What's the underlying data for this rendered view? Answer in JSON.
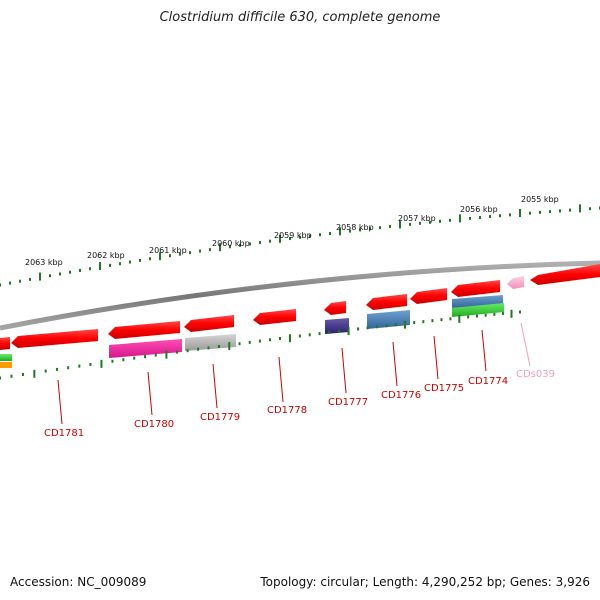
{
  "title": "Clostridium difficile 630, complete genome",
  "footer": {
    "accession": "Accession: NC_009089",
    "summary": "Topology: circular; Length: 4,290,252 bp; Genes: 3,926"
  },
  "colors": {
    "backbone": "#8a8a8a",
    "tick": "#1e7a1e",
    "gene_label": "#cc0000",
    "cds_label": "#f0a0c0"
  },
  "kbp_ticks": [
    {
      "label": "2063 kbp"
    },
    {
      "label": "2062 kbp"
    },
    {
      "label": "2061 kbp"
    },
    {
      "label": "2060 kbp"
    },
    {
      "label": "2059 kbp"
    },
    {
      "label": "2058 kbp"
    },
    {
      "label": "2057 kbp"
    },
    {
      "label": "2056 kbp"
    },
    {
      "label": "2055 kbp"
    }
  ],
  "gene_labels": [
    {
      "text": "CD1781",
      "color": "#cc0000"
    },
    {
      "text": "CD1780",
      "color": "#cc0000"
    },
    {
      "text": "CD1779",
      "color": "#cc0000"
    },
    {
      "text": "CD1778",
      "color": "#cc0000"
    },
    {
      "text": "CD1777",
      "color": "#cc0000"
    },
    {
      "text": "CD1776",
      "color": "#cc0000"
    },
    {
      "text": "CD1775",
      "color": "#cc0000"
    },
    {
      "text": "CD1774",
      "color": "#cc0000"
    },
    {
      "text": "CDs039",
      "color": "#f0a0c0"
    }
  ]
}
